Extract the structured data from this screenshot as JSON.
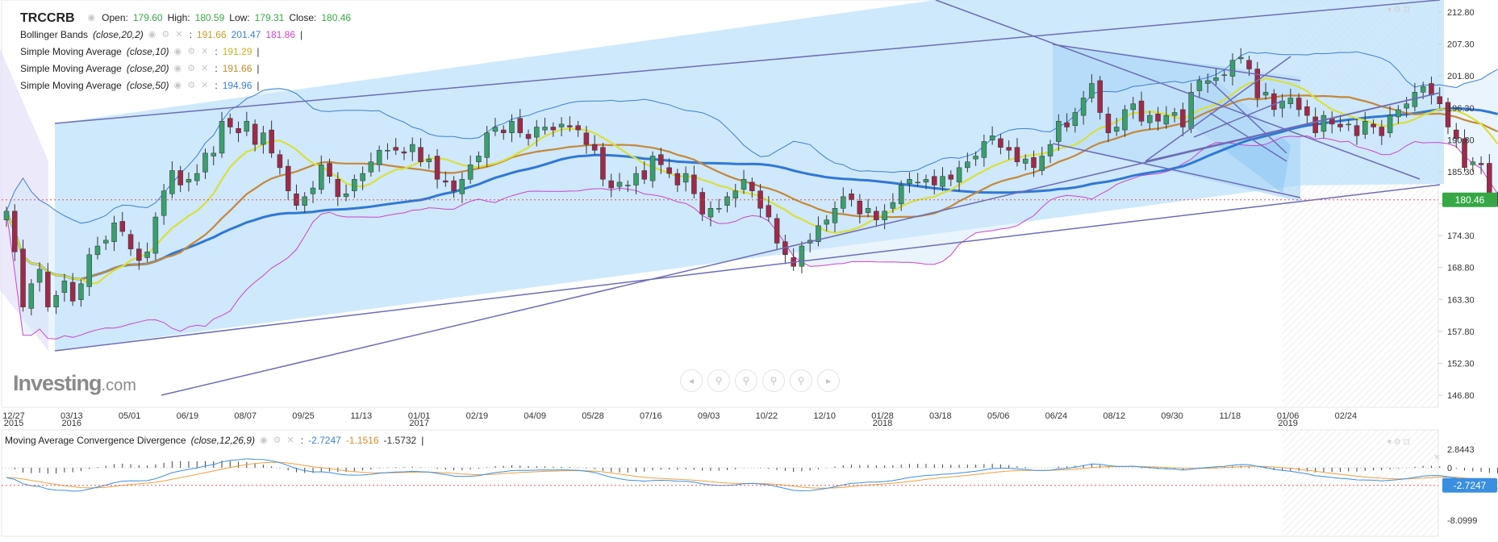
{
  "header": {
    "symbol": "TRCCRB",
    "open_label": "Open:",
    "open_value": "179.60",
    "high_label": "High:",
    "high_value": "180.59",
    "low_label": "Low:",
    "low_value": "179.31",
    "close_label": "Close:",
    "close_value": "180.46"
  },
  "indicators": [
    {
      "name": "Bollinger Bands",
      "params": "(close,20,2)",
      "values": [
        "191.66",
        "201.47",
        "181.86"
      ],
      "colors": [
        "#c79b2a",
        "#3b7fd4",
        "#cc44cc"
      ]
    },
    {
      "name": "Simple Moving Average",
      "params": "(close,10)",
      "values": [
        "191.29"
      ],
      "colors": [
        "#c8c82a"
      ]
    },
    {
      "name": "Simple Moving Average",
      "params": "(close,20)",
      "values": [
        "191.66"
      ],
      "colors": [
        "#c78a2a"
      ]
    },
    {
      "name": "Simple Moving Average",
      "params": "(close,50)",
      "values": [
        "194.96"
      ],
      "colors": [
        "#3b7fd4"
      ]
    }
  ],
  "macd_legend": {
    "name": "Moving Average Convergence Divergence",
    "params": "(close,12,26,9)",
    "values": [
      "-2.7247",
      "-1.1516",
      "-1.5732"
    ],
    "colors": [
      "#3b7fd4",
      "#e08a2a",
      "#333333"
    ]
  },
  "logo": {
    "text": "Investing",
    "suffix": ".com"
  },
  "tool_icons": [
    "arrow-left-icon",
    "zoom-out-icon",
    "reset-icon",
    "zoom-in-icon",
    "zoom-out-small-icon",
    "arrow-right-icon"
  ],
  "colors": {
    "up": "#3a9e6e",
    "down": "#9e2a4a",
    "channel_fill": "#bfe2fb",
    "trend_line": "#6c6cb8",
    "price_tag": "#35a845",
    "macd_tag": "#3b8fe0"
  },
  "chart_data": [
    {
      "type": "candlestick",
      "title": "TRCCRB",
      "ylim": [
        142,
        215
      ],
      "y_ticks": [
        "212.80",
        "207.30",
        "201.80",
        "196.30",
        "190.80",
        "185.30",
        "179.80",
        "174.30",
        "168.80",
        "163.30",
        "157.80",
        "152.30",
        "146.80"
      ],
      "current_price": "180.46",
      "x_ticks": [
        {
          "label": "12/27",
          "year": "2015"
        },
        {
          "label": "03/13",
          "year": "2016"
        },
        {
          "label": "05/01",
          "year": ""
        },
        {
          "label": "06/19",
          "year": ""
        },
        {
          "label": "08/07",
          "year": ""
        },
        {
          "label": "09/25",
          "year": ""
        },
        {
          "label": "11/13",
          "year": ""
        },
        {
          "label": "01/01",
          "year": "2017"
        },
        {
          "label": "02/19",
          "year": ""
        },
        {
          "label": "04/09",
          "year": ""
        },
        {
          "label": "05/28",
          "year": ""
        },
        {
          "label": "07/16",
          "year": ""
        },
        {
          "label": "09/03",
          "year": ""
        },
        {
          "label": "10/22",
          "year": ""
        },
        {
          "label": "12/10",
          "year": ""
        },
        {
          "label": "01/28",
          "year": "2018"
        },
        {
          "label": "03/18",
          "year": ""
        },
        {
          "label": "05/06",
          "year": ""
        },
        {
          "label": "06/24",
          "year": ""
        },
        {
          "label": "08/12",
          "year": ""
        },
        {
          "label": "09/30",
          "year": ""
        },
        {
          "label": "11/18",
          "year": ""
        },
        {
          "label": "01/06",
          "year": "2019"
        },
        {
          "label": "02/24",
          "year": ""
        }
      ],
      "closes": [
        178.5,
        171.5,
        162,
        166,
        168.5,
        162,
        164,
        166.5,
        163,
        166,
        171,
        172.5,
        173.5,
        176.5,
        175,
        172,
        170,
        171.5,
        177.5,
        182,
        185.5,
        183,
        184,
        185,
        188.5,
        188.5,
        194,
        193,
        192,
        194,
        190,
        192,
        188.5,
        186,
        182,
        179.5,
        181,
        182.5,
        186.5,
        184.5,
        181,
        181.5,
        184,
        185,
        187,
        189,
        189,
        189,
        188.5,
        190,
        187,
        187.5,
        184,
        183.5,
        182,
        184,
        186.5,
        188,
        192,
        193,
        192,
        194,
        192,
        191,
        193,
        193,
        192.5,
        193.5,
        193,
        192.5,
        190,
        189,
        184,
        182.5,
        183.5,
        183,
        185,
        184,
        188,
        186.5,
        185,
        183,
        185,
        181.5,
        178,
        179,
        179,
        181,
        182,
        184,
        182,
        179,
        177.5,
        173,
        171,
        169,
        172.5,
        173.5,
        176,
        177,
        179,
        181,
        180.5,
        178,
        179,
        177,
        178.5,
        180,
        183,
        184,
        183.5,
        184,
        183,
        184.5,
        184,
        186,
        187,
        188,
        190.5,
        191.5,
        189.5,
        189,
        187,
        187.5,
        186,
        188,
        190,
        194,
        193,
        195.5,
        198,
        200.5,
        195.5,
        192,
        193,
        196,
        197,
        194,
        195,
        194,
        195,
        195.5,
        193,
        199,
        201,
        201,
        201.5,
        202,
        204.5,
        205,
        203,
        198,
        199,
        196,
        197.5,
        198,
        196,
        195,
        192,
        195,
        193.5,
        193,
        193.5,
        191.5,
        194,
        193,
        191.5,
        195,
        196,
        197,
        199,
        200,
        198.5,
        197,
        193,
        191,
        186,
        187,
        186.5,
        181.5,
        180.46
      ]
    },
    {
      "type": "line",
      "title": "MACD",
      "ylim": [
        -10,
        4
      ],
      "y_ticks": [
        "2.8443",
        "0",
        "-8.0999"
      ],
      "current_value": "-2.7247"
    }
  ]
}
